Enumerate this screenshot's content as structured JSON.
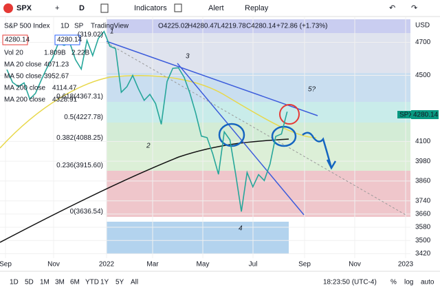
{
  "toolbar": {
    "symbol": "SPX",
    "interval": "D",
    "indicators": "Indicators",
    "alert": "Alert",
    "replay": "Replay"
  },
  "legend": {
    "title": "S&P 500 Index",
    "interval": "1D",
    "exchange": "SP",
    "source": "TradingView",
    "open": "O4225.02",
    "high": "H4280.47",
    "low": "L4219.78",
    "close": "C4280.14",
    "change": "+72.86 (+1.73%)",
    "sell": "4280.14",
    "buy": "4280.14",
    "indicators": [
      {
        "name": "Vol 20",
        "values": [
          "1.809B",
          "2.22B"
        ]
      },
      {
        "name": "MA 20 close",
        "values": [
          "4071.23"
        ]
      },
      {
        "name": "MA 50 close",
        "values": [
          "3952.67"
        ]
      },
      {
        "name": "MA 200 close",
        "values": [
          "4114.47"
        ]
      },
      {
        "name": "MA 200 close",
        "values": [
          "4328.91"
        ]
      }
    ]
  },
  "chart": {
    "currency": "USD",
    "ylim": [
      3380,
      4840
    ],
    "yticks": [
      4700,
      4500,
      4100,
      3980,
      3860,
      3740,
      3660,
      3580,
      3500,
      3420
    ],
    "xlabels": [
      "Sep",
      "Nov",
      "2022",
      "Mar",
      "May",
      "Jul",
      "Sep",
      "Nov",
      "2023"
    ],
    "last": {
      "symbol": "SPX",
      "price": "4280.14"
    },
    "close": [
      4535,
      4458,
      4432,
      4455,
      4357,
      4391,
      4471,
      4545,
      4605,
      4697,
      4682,
      4698,
      4595,
      4538,
      4712,
      4620,
      4725,
      4766,
      4677,
      4662,
      4398,
      4432,
      4500,
      4418,
      4349,
      4385,
      4329,
      4204,
      4463,
      4543,
      4546,
      4488,
      4392,
      4272,
      4132,
      4123,
      4024,
      3901,
      4158,
      4109,
      3901,
      3675,
      3912,
      3825,
      3899,
      3863,
      3962,
      4130,
      4145,
      4280
    ],
    "fib": [
      {
        "level": "",
        "price": "(319.02)"
      },
      {
        "level": "0.618",
        "price": "(4367.31)"
      },
      {
        "level": "0.5",
        "price": "(4227.78)"
      },
      {
        "level": "0.382",
        "price": "(4088.25)"
      },
      {
        "level": "0.236",
        "price": "(3915.60)"
      },
      {
        "level": "0",
        "price": "(3636.54)"
      }
    ],
    "annotations": [
      "1",
      "2",
      "3",
      "4",
      "5?"
    ]
  },
  "bottom": {
    "ranges": [
      "1D",
      "5D",
      "1M",
      "3M",
      "6M",
      "YTD",
      "1Y",
      "5Y",
      "All"
    ],
    "time": "18:23:50 (UTC-4)",
    "percent": "%",
    "log": "log",
    "auto": "auto"
  }
}
